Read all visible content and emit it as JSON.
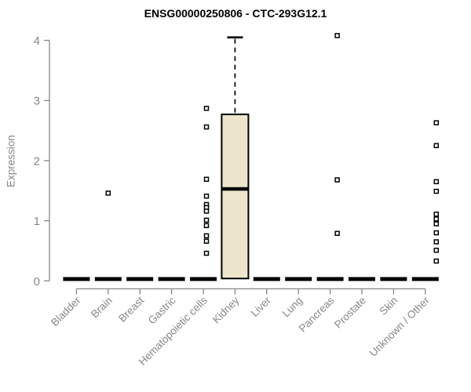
{
  "chart_data": {
    "type": "boxplot",
    "title": "ENSG00000250806 - CTC-293G12.1",
    "ylabel": "Expression",
    "xlabel": "",
    "ylim": [
      0,
      4
    ],
    "yticks": [
      0,
      1,
      2,
      3,
      4
    ],
    "grid": false,
    "legend": "none",
    "box_fill_color": "#ede6cd",
    "box_line_color": "#000000",
    "axis_color": "#878787",
    "categories": [
      "Bladder",
      "Brain",
      "Breast",
      "Gastric",
      "Hematopoietic cells",
      "Kidney",
      "Liver",
      "Lung",
      "Pancreas",
      "Prostate",
      "Skin",
      "Unknown / Other"
    ],
    "series": [
      {
        "name": "Bladder",
        "median": 0,
        "q1": 0,
        "q3": 0,
        "whisker_low": 0,
        "whisker_high": 0,
        "outliers": [],
        "outlier_dx": 0
      },
      {
        "name": "Brain",
        "median": 0,
        "q1": 0,
        "q3": 0,
        "whisker_low": 0,
        "whisker_high": 0,
        "outliers": [
          1.46
        ],
        "outlier_dx": 0
      },
      {
        "name": "Breast",
        "median": 0,
        "q1": 0,
        "q3": 0,
        "whisker_low": 0,
        "whisker_high": 0,
        "outliers": [],
        "outlier_dx": 0
      },
      {
        "name": "Gastric",
        "median": 0,
        "q1": 0,
        "q3": 0,
        "whisker_low": 0,
        "whisker_high": 0,
        "outliers": [],
        "outlier_dx": 0
      },
      {
        "name": "Hematopoietic cells",
        "median": 0,
        "q1": 0,
        "q3": 0,
        "whisker_low": 0,
        "whisker_high": 0,
        "outliers": [
          2.87,
          2.56,
          1.69,
          1.41,
          1.27,
          1.22,
          1.16,
          1.01,
          0.92,
          0.75,
          0.66,
          0.46
        ],
        "outlier_dx": 4
      },
      {
        "name": "Kidney",
        "median": 1.53,
        "q1": 0.04,
        "q3": 2.77,
        "whisker_low": 0.04,
        "whisker_high": 4.05,
        "outliers": [],
        "outlier_dx": 0
      },
      {
        "name": "Liver",
        "median": 0,
        "q1": 0,
        "q3": 0,
        "whisker_low": 0,
        "whisker_high": 0,
        "outliers": [],
        "outlier_dx": 0
      },
      {
        "name": "Lung",
        "median": 0,
        "q1": 0,
        "q3": 0,
        "whisker_low": 0,
        "whisker_high": 0,
        "outliers": [],
        "outlier_dx": 0
      },
      {
        "name": "Pancreas",
        "median": 0,
        "q1": 0,
        "q3": 0,
        "whisker_low": 0,
        "whisker_high": 0,
        "outliers": [
          4.08,
          1.68,
          0.79
        ],
        "outlier_dx": 9
      },
      {
        "name": "Prostate",
        "median": 0,
        "q1": 0,
        "q3": 0,
        "whisker_low": 0,
        "whisker_high": 0,
        "outliers": [],
        "outlier_dx": 0
      },
      {
        "name": "Skin",
        "median": 0,
        "q1": 0,
        "q3": 0,
        "whisker_low": 0,
        "whisker_high": 0,
        "outliers": [],
        "outlier_dx": 0
      },
      {
        "name": "Unknown / Other",
        "median": 0,
        "q1": 0,
        "q3": 0,
        "whisker_low": 0,
        "whisker_high": 0,
        "outliers": [
          2.63,
          2.25,
          1.65,
          1.49,
          1.11,
          1.03,
          0.95,
          0.8,
          0.65,
          0.51,
          0.33
        ],
        "outlier_dx": 14
      }
    ]
  }
}
